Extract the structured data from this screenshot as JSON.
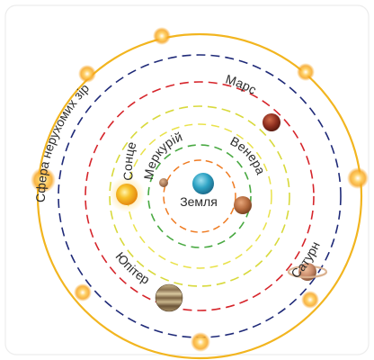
{
  "labels": {
    "sphere": "Сфера нерухомих зір",
    "mars": "Марс",
    "sun": "Сонце",
    "mercury": "Меркурій",
    "venus": "Венера",
    "earth": "Земля",
    "saturn": "Сатурн",
    "jupiter": "Юпітер"
  },
  "orbit_colors": {
    "sphere": "#f2b51f",
    "outer": "#1f2a78",
    "middle": "#d6252b",
    "yellow": "#d8d93c",
    "green": "#49a942",
    "inner": "#ef7b22"
  },
  "body_colors": {
    "earth": "#2ea3c4",
    "sun": "#f3a922",
    "mercury": "#b27b57",
    "venus": "#b46a3e",
    "mars": "#8e2e1f",
    "jupiter": "#8a7252",
    "saturn": "#c98a6a",
    "star": "#f6a21a"
  }
}
